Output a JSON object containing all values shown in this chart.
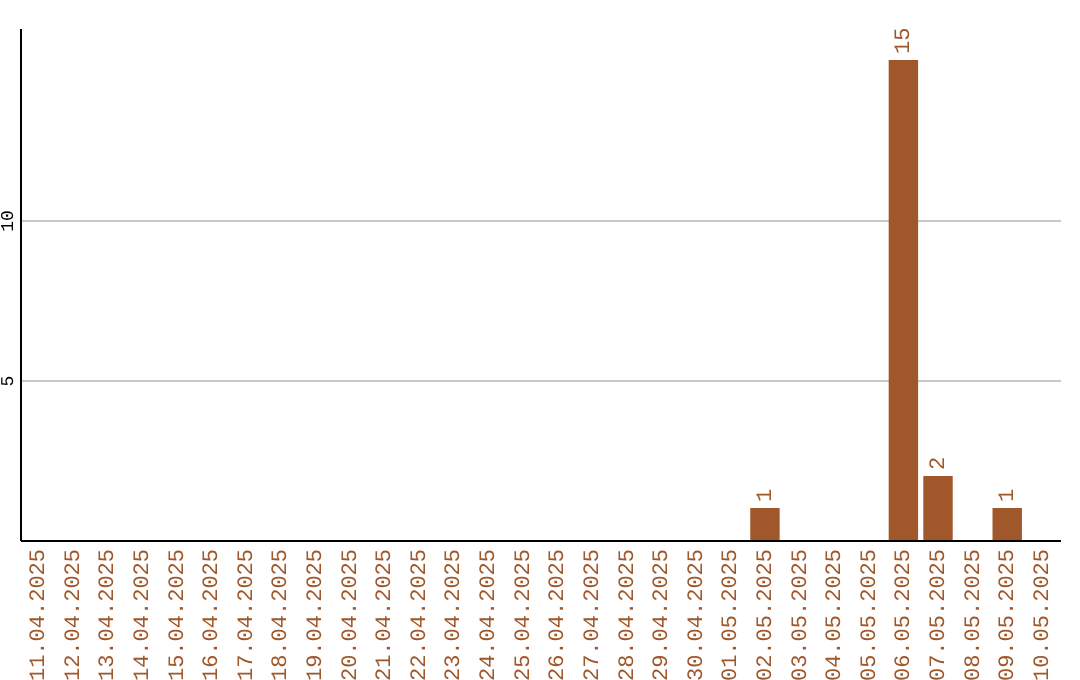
{
  "chart_data": {
    "type": "bar",
    "categories": [
      "11.04.2025",
      "12.04.2025",
      "13.04.2025",
      "14.04.2025",
      "15.04.2025",
      "16.04.2025",
      "17.04.2025",
      "18.04.2025",
      "19.04.2025",
      "20.04.2025",
      "21.04.2025",
      "22.04.2025",
      "23.04.2025",
      "24.04.2025",
      "25.04.2025",
      "26.04.2025",
      "27.04.2025",
      "28.04.2025",
      "29.04.2025",
      "30.04.2025",
      "01.05.2025",
      "02.05.2025",
      "03.05.2025",
      "04.05.2025",
      "05.05.2025",
      "06.05.2025",
      "07.05.2025",
      "08.05.2025",
      "09.05.2025",
      "10.05.2025"
    ],
    "values": [
      0,
      0,
      0,
      0,
      0,
      0,
      0,
      0,
      0,
      0,
      0,
      0,
      0,
      0,
      0,
      0,
      0,
      0,
      0,
      0,
      0,
      1,
      0,
      0,
      0,
      15,
      2,
      0,
      1,
      0
    ],
    "value_labels": [
      null,
      null,
      null,
      null,
      null,
      null,
      null,
      null,
      null,
      null,
      null,
      null,
      null,
      null,
      null,
      null,
      null,
      null,
      null,
      null,
      null,
      "1",
      null,
      null,
      null,
      "15",
      "2",
      null,
      "1",
      null
    ],
    "color": "#a0572a",
    "ylim": [
      0,
      16
    ],
    "yticks": [
      5,
      10
    ],
    "grid": "y"
  }
}
